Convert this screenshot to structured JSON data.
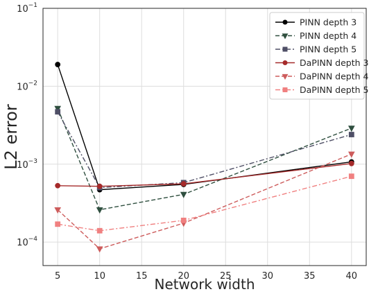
{
  "chart_data": {
    "type": "line",
    "xlabel": "Network width",
    "ylabel": "L2 error",
    "yscale": "log",
    "xlim": [
      3.25,
      41.75
    ],
    "ylim": [
      5e-05,
      0.1
    ],
    "xticks": [
      5,
      10,
      15,
      20,
      25,
      30,
      35,
      40
    ],
    "yticks": [
      {
        "value": 0.0001,
        "base": "10",
        "exp": "−4"
      },
      {
        "value": 0.001,
        "base": "10",
        "exp": "−3"
      },
      {
        "value": 0.01,
        "base": "10",
        "exp": "−2"
      },
      {
        "value": 0.1,
        "base": "10",
        "exp": "−1"
      }
    ],
    "grid": true,
    "legend_position": "top-right",
    "x": [
      5,
      10,
      20,
      40
    ],
    "series": [
      {
        "name": "PINN depth 3",
        "color": "#000000",
        "dash": "solid",
        "marker": "circle",
        "values": [
          0.019,
          0.00047,
          0.00055,
          0.00107
        ]
      },
      {
        "name": "PINN depth 4",
        "color": "#2f4f3f",
        "dash": "dashed",
        "marker": "triangle-down",
        "values": [
          0.0052,
          0.00026,
          0.00041,
          0.0029
        ]
      },
      {
        "name": "PINN depth 5",
        "color": "#4f4f66",
        "dash": "dashdot",
        "marker": "square",
        "values": [
          0.0047,
          0.0005,
          0.00058,
          0.0024
        ]
      },
      {
        "name": "DaPINN depth 3",
        "color": "#a52a2a",
        "dash": "solid",
        "marker": "circle",
        "values": [
          0.00053,
          0.00052,
          0.00056,
          0.00102
        ]
      },
      {
        "name": "DaPINN depth 4",
        "color": "#cd5c5c",
        "dash": "dashed",
        "marker": "triangle-down",
        "values": [
          0.00026,
          8.2e-05,
          0.000175,
          0.00135
        ]
      },
      {
        "name": "DaPINN depth 5",
        "color": "#f08080",
        "dash": "dashdot",
        "marker": "square",
        "values": [
          0.00017,
          0.00014,
          0.00019,
          0.0007
        ]
      }
    ]
  }
}
